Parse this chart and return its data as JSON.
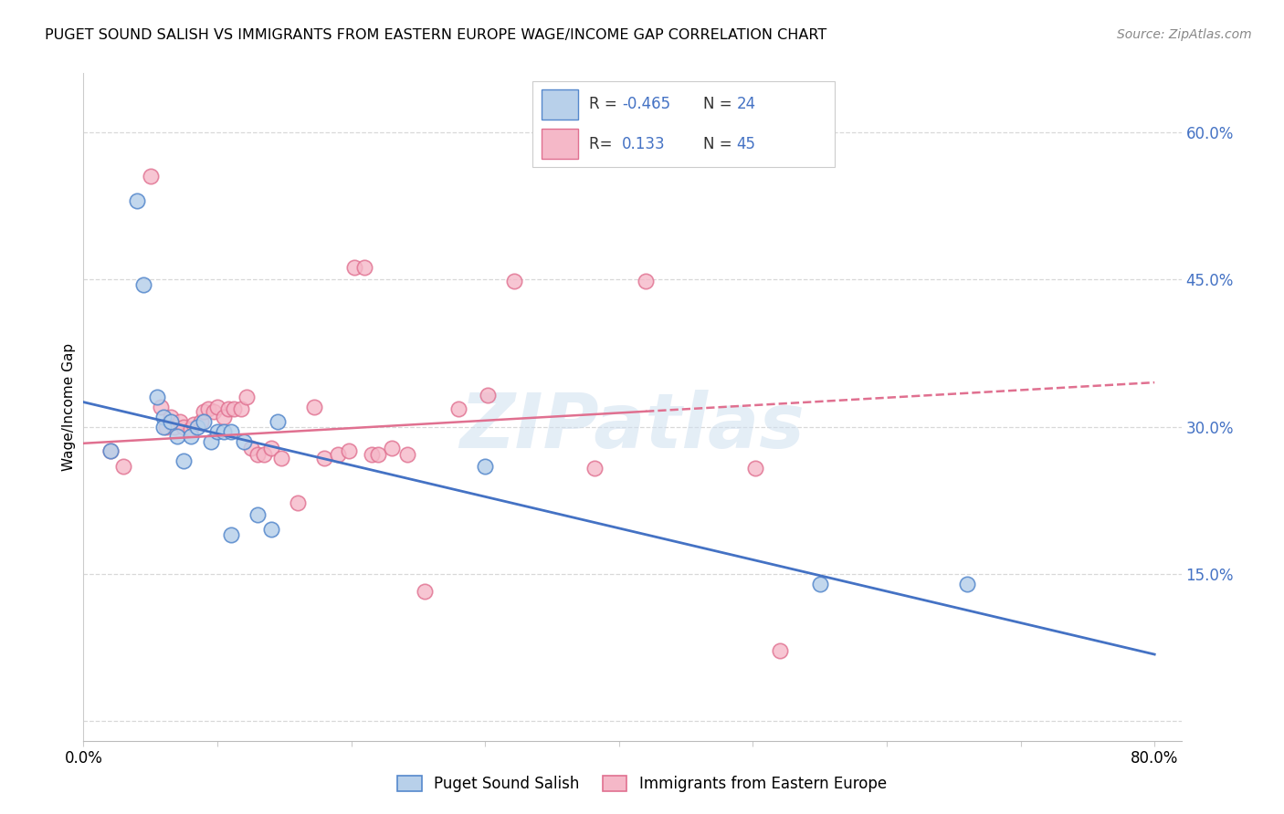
{
  "title": "PUGET SOUND SALISH VS IMMIGRANTS FROM EASTERN EUROPE WAGE/INCOME GAP CORRELATION CHART",
  "source": "Source: ZipAtlas.com",
  "ylabel": "Wage/Income Gap",
  "xlim": [
    0.0,
    0.82
  ],
  "ylim": [
    -0.02,
    0.66
  ],
  "xtick_positions": [
    0.0,
    0.1,
    0.2,
    0.3,
    0.4,
    0.5,
    0.6,
    0.7,
    0.8
  ],
  "xticklabels": [
    "0.0%",
    "",
    "",
    "",
    "",
    "",
    "",
    "",
    "80.0%"
  ],
  "ytick_positions": [
    0.0,
    0.15,
    0.3,
    0.45,
    0.6
  ],
  "yticklabels_right": [
    "",
    "15.0%",
    "30.0%",
    "45.0%",
    "60.0%"
  ],
  "watermark_zip": "ZIP",
  "watermark_atlas": "atlas",
  "blue_R": "-0.465",
  "blue_N": "24",
  "pink_R": "0.133",
  "pink_N": "45",
  "blue_label": "Puget Sound Salish",
  "pink_label": "Immigrants from Eastern Europe",
  "blue_face": "#b8d0ea",
  "pink_face": "#f5b8c8",
  "blue_edge": "#5588cc",
  "pink_edge": "#e07090",
  "blue_line": "#4472c4",
  "pink_line": "#e07090",
  "grid_color": "#d8d8d8",
  "text_blue": "#4472c4",
  "blue_x": [
    0.02,
    0.04,
    0.045,
    0.055,
    0.06,
    0.06,
    0.065,
    0.07,
    0.075,
    0.08,
    0.085,
    0.09,
    0.095,
    0.1,
    0.105,
    0.11,
    0.11,
    0.12,
    0.13,
    0.14,
    0.145,
    0.3,
    0.55,
    0.66
  ],
  "blue_y": [
    0.275,
    0.53,
    0.445,
    0.33,
    0.31,
    0.3,
    0.305,
    0.29,
    0.265,
    0.29,
    0.3,
    0.305,
    0.285,
    0.295,
    0.295,
    0.19,
    0.295,
    0.285,
    0.21,
    0.195,
    0.305,
    0.26,
    0.14,
    0.14
  ],
  "pink_x": [
    0.02,
    0.03,
    0.05,
    0.058,
    0.062,
    0.065,
    0.068,
    0.072,
    0.075,
    0.08,
    0.082,
    0.088,
    0.09,
    0.093,
    0.097,
    0.1,
    0.105,
    0.108,
    0.112,
    0.118,
    0.122,
    0.125,
    0.13,
    0.135,
    0.14,
    0.148,
    0.16,
    0.172,
    0.18,
    0.19,
    0.198,
    0.202,
    0.21,
    0.215,
    0.22,
    0.23,
    0.242,
    0.255,
    0.28,
    0.302,
    0.322,
    0.382,
    0.42,
    0.502,
    0.52
  ],
  "pink_y": [
    0.275,
    0.26,
    0.555,
    0.32,
    0.3,
    0.31,
    0.3,
    0.305,
    0.3,
    0.298,
    0.302,
    0.305,
    0.315,
    0.318,
    0.315,
    0.32,
    0.31,
    0.318,
    0.318,
    0.318,
    0.33,
    0.278,
    0.272,
    0.272,
    0.278,
    0.268,
    0.222,
    0.32,
    0.268,
    0.272,
    0.275,
    0.462,
    0.462,
    0.272,
    0.272,
    0.278,
    0.272,
    0.132,
    0.318,
    0.332,
    0.448,
    0.258,
    0.448,
    0.258,
    0.072
  ]
}
